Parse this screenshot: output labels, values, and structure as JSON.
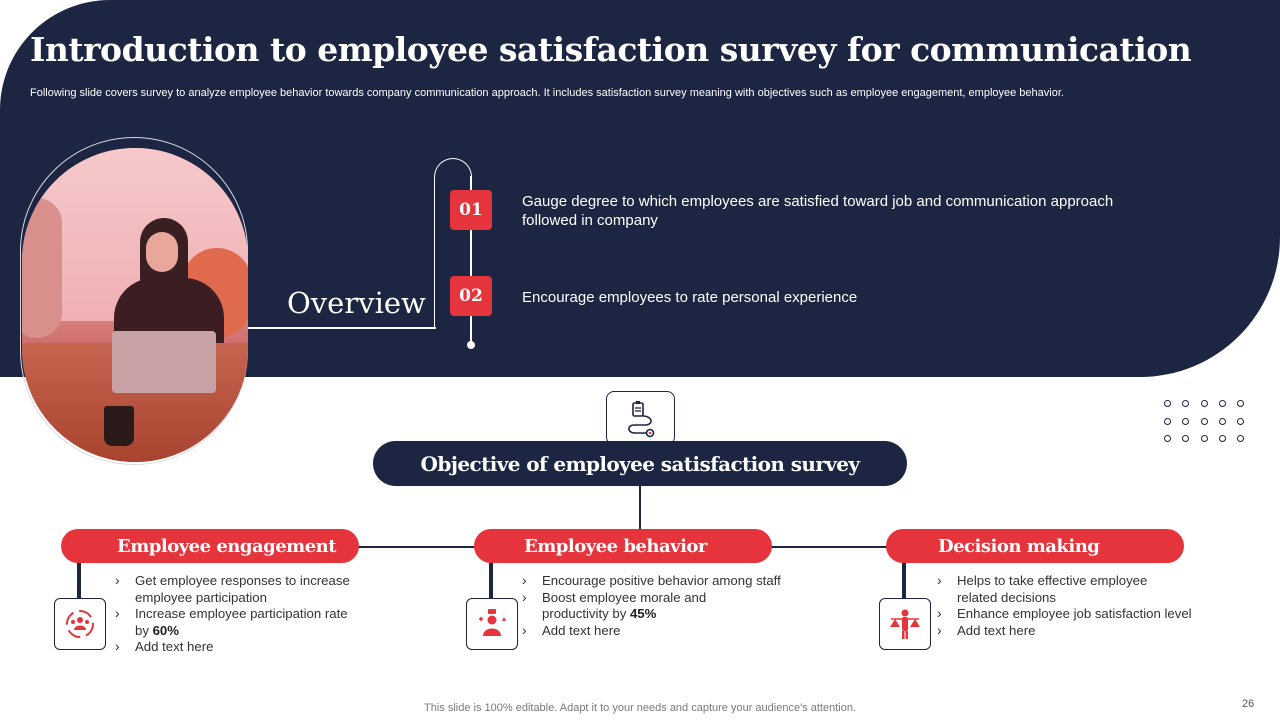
{
  "title": "Introduction to employee satisfaction survey for communication",
  "subtitle": "Following slide covers survey to analyze employee behavior towards company communication approach. It includes satisfaction survey meaning with objectives such as employee engagement, employee behavior.",
  "overview": {
    "label": "Overview",
    "points": [
      {
        "number": "01",
        "text": "Gauge degree to which employees are satisfied toward job and communication approach followed in company"
      },
      {
        "number": "02",
        "text": "Encourage employees to rate personal experience"
      }
    ]
  },
  "objective": {
    "title": "Objective of employee satisfaction survey",
    "icon": "survey-clipboard-icon"
  },
  "categories": [
    {
      "title": "Employee engagement",
      "icon": "team-cycle-icon",
      "bullets": [
        {
          "text": "Get employee responses to increase employee participation",
          "bold": ""
        },
        {
          "text": "Increase employee participation rate by ",
          "bold": "60%"
        },
        {
          "text": "Add text here",
          "bold": ""
        }
      ]
    },
    {
      "title": "Employee behavior",
      "icon": "behavior-person-icon",
      "bullets": [
        {
          "text": "Encourage positive behavior among staff",
          "bold": ""
        },
        {
          "text": "Boost employee morale and productivity by ",
          "bold": "45%"
        },
        {
          "text": "Add text here",
          "bold": ""
        }
      ]
    },
    {
      "title": "Decision making",
      "icon": "balance-scale-person-icon",
      "bullets": [
        {
          "text": "Helps to take effective employee related decisions",
          "bold": ""
        },
        {
          "text": "Enhance employee job satisfaction level",
          "bold": ""
        },
        {
          "text": "Add text here",
          "bold": ""
        }
      ]
    }
  ],
  "footer": "This slide is 100% editable. Adapt it to your needs and capture your audience's attention.",
  "page_number": "26",
  "colors": {
    "navy": "#1c2541",
    "red": "#e5343c",
    "white": "#ffffff"
  }
}
